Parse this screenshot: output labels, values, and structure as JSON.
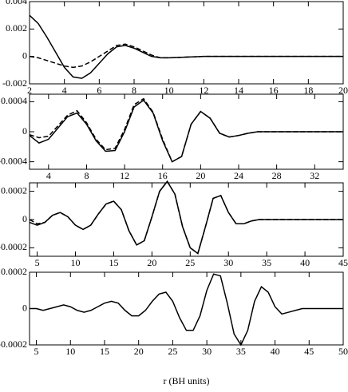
{
  "chart_data": [
    {
      "type": "line",
      "xlim": [
        2,
        20
      ],
      "ylim": [
        -0.002,
        0.004
      ],
      "xticks": [
        2,
        4,
        6,
        8,
        10,
        12,
        14,
        16,
        18,
        20
      ],
      "yticks": [
        -0.002,
        0,
        0.002,
        0.004
      ],
      "x": [
        2,
        2.5,
        3,
        3.5,
        4,
        4.5,
        5,
        5.5,
        6,
        6.5,
        7,
        7.5,
        8,
        8.5,
        9,
        9.5,
        10,
        10.5,
        11,
        11.5,
        12,
        12.5,
        13,
        13.5,
        14,
        14.5,
        15,
        15.5,
        16,
        16.5,
        17,
        17.5,
        18,
        18.5,
        19,
        19.5,
        20
      ],
      "series": [
        {
          "color": "#000000",
          "dashed": false,
          "values": [
            0.003,
            0.0024,
            0.0014,
            0.0003,
            -0.0008,
            -0.0015,
            -0.0016,
            -0.0012,
            -0.0005,
            0.0002,
            0.0007,
            0.0008,
            0.0006,
            0.0003,
            0,
            -0.0001,
            -0.0001,
            -8e-05,
            -5e-05,
            -3e-05,
            0,
            0,
            0,
            0,
            0,
            0,
            0,
            0,
            0,
            0,
            0,
            0,
            0,
            0,
            0,
            0,
            0
          ]
        },
        {
          "color": "#000000",
          "dashed": true,
          "values": [
            0,
            -0.0001,
            -0.0003,
            -0.0005,
            -0.0007,
            -0.0008,
            -0.0007,
            -0.0004,
            0,
            0.0004,
            0.0008,
            0.0009,
            0.0007,
            0.0004,
            0.0001,
            -0.0001,
            -0.0001,
            -8e-05,
            -5e-05,
            -3e-05,
            0,
            0,
            0,
            0,
            0,
            0,
            0,
            0,
            0,
            0,
            0,
            0,
            0,
            0,
            0,
            0,
            0
          ]
        }
      ]
    },
    {
      "type": "line",
      "xlim": [
        2,
        35
      ],
      "ylim": [
        -0.0005,
        0.0005
      ],
      "xticks": [
        4,
        8,
        12,
        16,
        20,
        24,
        28,
        32
      ],
      "yticks": [
        -0.0004,
        0,
        0.0004
      ],
      "x": [
        2,
        3,
        4,
        5,
        6,
        7,
        8,
        9,
        10,
        11,
        12,
        13,
        14,
        15,
        16,
        17,
        18,
        19,
        20,
        21,
        22,
        23,
        24,
        25,
        26,
        27,
        28,
        29,
        30,
        31,
        32,
        33,
        34,
        35
      ],
      "series": [
        {
          "color": "#000000",
          "dashed": false,
          "values": [
            -5e-05,
            -0.00015,
            -0.0001,
            5e-05,
            0.0002,
            0.00025,
            0.0001,
            -0.00012,
            -0.00026,
            -0.00025,
            0,
            0.00033,
            0.00042,
            0.00025,
            -0.00012,
            -0.0004,
            -0.00033,
            0.0001,
            0.00027,
            0.00018,
            -2e-05,
            -7e-05,
            -5e-05,
            -2e-05,
            0,
            0,
            0,
            0,
            0,
            0,
            0,
            0,
            0,
            0
          ]
        },
        {
          "color": "#000000",
          "dashed": true,
          "values": [
            -4e-05,
            -8e-05,
            -6e-05,
            8e-05,
            0.00022,
            0.00028,
            0.00012,
            -0.0001,
            -0.00024,
            -0.00022,
            3e-05,
            0.00036,
            0.00044,
            0.00026,
            -0.0001,
            -0.0004,
            -0.00033,
            0.0001,
            0.00027,
            0.00018,
            -2e-05,
            -7e-05,
            -5e-05,
            -2e-05,
            0,
            0,
            0,
            0,
            0,
            0,
            0,
            0,
            0,
            0
          ]
        }
      ]
    },
    {
      "type": "line",
      "xlim": [
        4,
        45
      ],
      "ylim": [
        -0.00026,
        0.00026
      ],
      "xticks": [
        5,
        10,
        15,
        20,
        25,
        30,
        35,
        40,
        45
      ],
      "yticks": [
        -0.0002,
        0,
        0.0002
      ],
      "x": [
        4,
        5,
        6,
        7,
        8,
        9,
        10,
        11,
        12,
        13,
        14,
        15,
        16,
        17,
        18,
        19,
        20,
        21,
        22,
        23,
        24,
        25,
        26,
        27,
        28,
        29,
        30,
        31,
        32,
        33,
        34,
        35,
        36,
        37,
        38,
        39,
        40,
        41,
        42,
        43,
        44,
        45
      ],
      "series": [
        {
          "color": "#000000",
          "dashed": false,
          "values": [
            -2e-05,
            -4e-05,
            -2e-05,
            3e-05,
            5e-05,
            2e-05,
            -4e-05,
            -7e-05,
            -4e-05,
            4e-05,
            0.00011,
            0.00013,
            7e-05,
            -8e-05,
            -0.00018,
            -0.00015,
            2e-05,
            0.0002,
            0.00027,
            0.00018,
            -5e-05,
            -0.0002,
            -0.00024,
            -5e-05,
            0.00015,
            0.00017,
            5e-05,
            -3e-05,
            -3e-05,
            -1e-05,
            0,
            0,
            0,
            0,
            0,
            0,
            0,
            0,
            0,
            0,
            0,
            0
          ]
        },
        {
          "color": "#000000",
          "dashed": true,
          "values": [
            0,
            -3e-05,
            -2e-05,
            3e-05,
            5e-05,
            2e-05,
            -4e-05,
            -7e-05,
            -4e-05,
            4e-05,
            0.00011,
            0.00013,
            7e-05,
            -8e-05,
            -0.00018,
            -0.00015,
            2e-05,
            0.0002,
            0.00027,
            0.00018,
            -5e-05,
            -0.0002,
            -0.00024,
            -5e-05,
            0.00015,
            0.00017,
            5e-05,
            -3e-05,
            -3e-05,
            -1e-05,
            0,
            0,
            0,
            0,
            0,
            0,
            0,
            0,
            0,
            0,
            0,
            0
          ]
        }
      ]
    },
    {
      "type": "line",
      "xlim": [
        4,
        50
      ],
      "ylim": [
        -0.0002,
        0.0002
      ],
      "xticks": [
        5,
        10,
        15,
        20,
        25,
        30,
        35,
        40,
        45,
        50
      ],
      "yticks": [
        -0.0002,
        0,
        0.0002
      ],
      "xlabel": "r (BH units)",
      "x": [
        4,
        5,
        6,
        7,
        8,
        9,
        10,
        11,
        12,
        13,
        14,
        15,
        16,
        17,
        18,
        19,
        20,
        21,
        22,
        23,
        24,
        25,
        26,
        27,
        28,
        29,
        30,
        31,
        32,
        33,
        34,
        35,
        36,
        37,
        38,
        39,
        40,
        41,
        42,
        43,
        44,
        45,
        46,
        47,
        48,
        49,
        50
      ],
      "series": [
        {
          "color": "#000000",
          "dashed": false,
          "values": [
            0,
            0,
            -1e-05,
            0,
            1e-05,
            2e-05,
            1e-05,
            -1e-05,
            -2e-05,
            -1e-05,
            1e-05,
            3e-05,
            4e-05,
            3e-05,
            -1e-05,
            -4e-05,
            -4e-05,
            -1e-05,
            4e-05,
            8e-05,
            9e-05,
            4e-05,
            -5e-05,
            -0.00012,
            -0.00012,
            -4e-05,
            0.0001,
            0.00019,
            0.00018,
            3e-05,
            -0.00014,
            -0.0002,
            -0.00012,
            4e-05,
            0.00012,
            9e-05,
            1e-05,
            -3e-05,
            -2e-05,
            -1e-05,
            0,
            0,
            0,
            0,
            0,
            0,
            0
          ]
        }
      ]
    }
  ]
}
